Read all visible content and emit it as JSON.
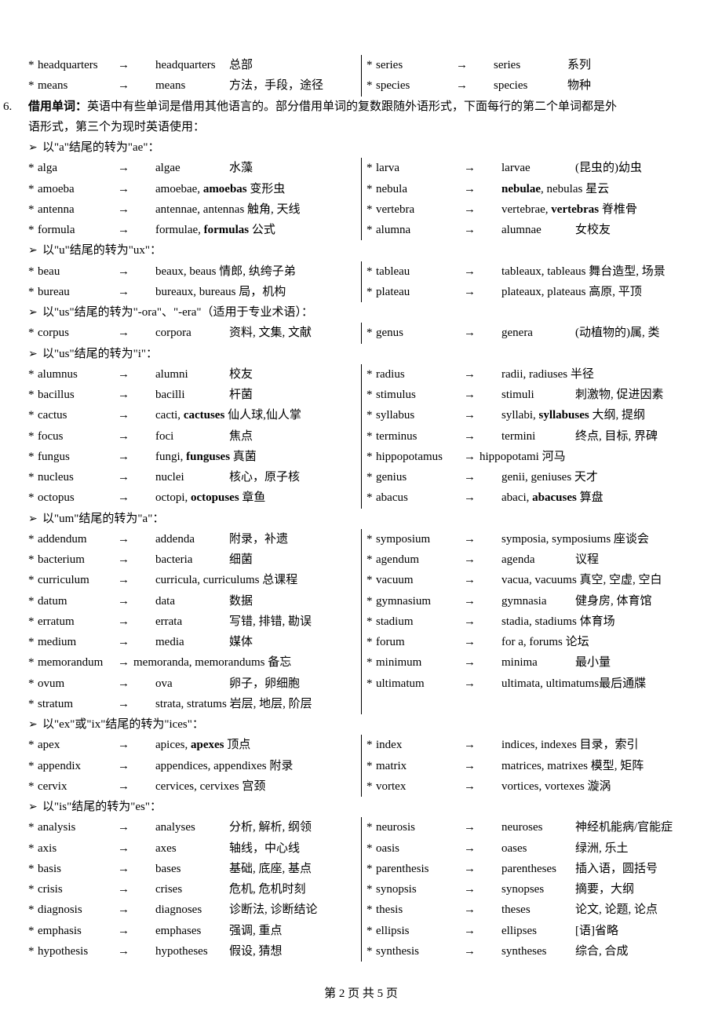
{
  "glyph": {
    "star": "*",
    "arrow": "→",
    "chev": "➢"
  },
  "top": {
    "L1": {
      "w": "headquarters",
      "p": "headquarters",
      "m": "总部"
    },
    "L2": {
      "w": "means",
      "p": "means",
      "m": "方法，手段，途径"
    },
    "R1": {
      "w": "series",
      "p": "series",
      "m": "系列"
    },
    "R2": {
      "w": "species",
      "p": "species",
      "m": "物种"
    }
  },
  "sec6": {
    "num": "6.",
    "title": "借用单词：",
    "body": "英语中有些单词是借用其他语言的。部分借用单词的复数跟随外语形式，下面每行的第二个单词都是外",
    "cont": "语形式，第三个为现时英语使用："
  },
  "h_a": "以\"a\"结尾的转为\"ae\"：",
  "a": {
    "L": [
      {
        "w": "alga",
        "p": "algae",
        "m": "水藻"
      },
      {
        "w": "amoeba",
        "p": "amoebae, <b>amoebas</b>  变形虫"
      },
      {
        "w": "antenna",
        "p": "antennae, antennas  触角, 天线"
      },
      {
        "w": "formula",
        "p": "formulae, <b>formulas</b>  公式"
      }
    ],
    "R": [
      {
        "w": "larva",
        "p": "larvae",
        "m": "(昆虫的)幼虫"
      },
      {
        "w": "nebula",
        "p": "<b>nebulae</b>, nebulas  星云"
      },
      {
        "w": "vertebra",
        "p": "vertebrae, <b>vertebras</b>  脊椎骨"
      },
      {
        "w": "alumna",
        "p": "alumnae",
        "m": "女校友"
      }
    ]
  },
  "h_u": "以\"u\"结尾的转为\"ux\"：",
  "u": {
    "L": [
      {
        "w": "beau",
        "p": "beaux, beaus  情郎, 纨绔子弟"
      },
      {
        "w": "bureau",
        "p": "bureaux, bureaus  局，机构"
      }
    ],
    "R": [
      {
        "w": "tableau",
        "p": "tableaux, tableaus  舞台造型, 场景"
      },
      {
        "w": "plateau",
        "p": "plateaux, plateaus  高原, 平顶"
      }
    ]
  },
  "h_us1": "以\"us\"结尾的转为\"-ora\"、\"-era\"（适用于专业术语）：",
  "us1": {
    "L": [
      {
        "w": "corpus",
        "p": "corpora",
        "m": "资料, 文集, 文献"
      }
    ],
    "R": [
      {
        "w": "genus",
        "p": "genera",
        "m": "(动植物的)属, 类"
      }
    ]
  },
  "h_us2": "以\"us\"结尾的转为\"i\"：",
  "us2": {
    "L": [
      {
        "w": "alumnus",
        "p": "alumni",
        "m": "校友"
      },
      {
        "w": "bacillus",
        "p": "bacilli",
        "m": "杆菌"
      },
      {
        "w": "cactus",
        "p": "cacti, <b>cactuses</b>  仙人球,仙人掌"
      },
      {
        "w": "focus",
        "p": "foci",
        "m": "焦点"
      },
      {
        "w": "fungus",
        "p": "fungi, <b>funguses</b>  真菌"
      },
      {
        "w": "nucleus",
        "p": "nuclei",
        "m": "核心，原子核"
      },
      {
        "w": "octopus",
        "p": "octopi, <b>octopuses</b>  章鱼"
      }
    ],
    "R": [
      {
        "w": "radius",
        "p": "radii, radiuses       半径"
      },
      {
        "w": "stimulus",
        "p": "stimuli",
        "m": "刺激物, 促进因素"
      },
      {
        "w": "syllabus",
        "p": "syllabi, <b>syllabuses</b>  大纲, 提纲"
      },
      {
        "w": "terminus",
        "p": "termini",
        "m": "终点, 目标, 界碑"
      },
      {
        "w": "hippopotamus",
        "arrTight": true,
        "p": "hippopotami  河马"
      },
      {
        "w": "genius",
        "p": "genii, geniuses  天才"
      },
      {
        "w": "abacus",
        "p": "abaci, <b>abacuses</b>  算盘"
      }
    ]
  },
  "h_um": "以\"um\"结尾的转为\"a\"：",
  "um": {
    "L": [
      {
        "w": "addendum",
        "p": "addenda",
        "m": "附录，补遗"
      },
      {
        "w": "bacterium",
        "p": "bacteria",
        "m": "细菌"
      },
      {
        "w": "curriculum",
        "p": "curricula, curriculums  总课程"
      },
      {
        "w": "datum",
        "p": "data",
        "m": "数据"
      },
      {
        "w": "erratum",
        "p": "errata",
        "m": "写错, 排错, 勘误"
      },
      {
        "w": "medium",
        "p": "media",
        "m": "媒体"
      },
      {
        "w": "memorandum",
        "arrTight": true,
        "p": "memoranda, memorandums  备忘"
      },
      {
        "w": "ovum",
        "p": "ova",
        "m": "卵子，卵细胞"
      },
      {
        "w": "stratum",
        "p": "strata, stratums  岩层, 地层, 阶层"
      }
    ],
    "R": [
      {
        "w": "symposium",
        "p": "symposia, symposiums 座谈会"
      },
      {
        "w": "agendum",
        "p": "agenda",
        "m": "议程"
      },
      {
        "w": "vacuum",
        "p": "vacua, vacuums  真空, 空虚, 空白"
      },
      {
        "w": "gymnasium",
        "p": "gymnasia",
        "m": "健身房, 体育馆"
      },
      {
        "w": "stadium",
        "p": "stadia, stadiums  体育场"
      },
      {
        "w": "forum",
        "p": "for a, forums  论坛"
      },
      {
        "w": "minimum",
        "p": "minima",
        "m": "最小量"
      },
      {
        "w": "ultimatum",
        "p": "ultimata, ultimatums最后通牒"
      }
    ]
  },
  "h_ex": "以\"ex\"或\"ix\"结尾的转为\"ices\"：",
  "ex": {
    "L": [
      {
        "w": "apex",
        "p": "apices, <b>apexes</b>  顶点"
      },
      {
        "w": "appendix",
        "p": "appendices, appendixes  附录"
      },
      {
        "w": "cervix",
        "p": "cervices, cervixes  宫颈"
      }
    ],
    "R": [
      {
        "w": "index",
        "p": "indices, indexes  目录，索引"
      },
      {
        "w": "matrix",
        "p": "matrices, matrixes  模型, 矩阵"
      },
      {
        "w": "vortex",
        "p": "vortices, vortexes  漩涡"
      }
    ]
  },
  "h_is": "以\"is\"结尾的转为\"es\"：",
  "is": {
    "L": [
      {
        "w": "analysis",
        "p": "analyses",
        "m": "分析, 解析, 纲领"
      },
      {
        "w": "axis",
        "p": "axes",
        "m": "轴线，中心线"
      },
      {
        "w": "basis",
        "p": "bases",
        "m": "基础, 底座, 基点"
      },
      {
        "w": "crisis",
        "p": "crises",
        "m": "危机, 危机时刻"
      },
      {
        "w": "diagnosis",
        "p": "diagnoses",
        "m": "诊断法, 诊断结论"
      },
      {
        "w": "emphasis",
        "p": "emphases",
        "m": "强调, 重点"
      },
      {
        "w": "hypothesis",
        "p": "hypotheses",
        "m": "假设, 猜想"
      }
    ],
    "R": [
      {
        "w": "neurosis",
        "p": "neuroses",
        "m": "神经机能病/官能症"
      },
      {
        "w": "oasis",
        "p": "oases",
        "m": "绿洲, 乐土"
      },
      {
        "w": "parenthesis",
        "p": "parentheses",
        "m": "插入语，圆括号"
      },
      {
        "w": "synopsis",
        "p": "synopses",
        "m": "摘要，大纲"
      },
      {
        "w": "thesis",
        "p": "theses",
        "m": "论文, 论题, 论点"
      },
      {
        "w": "ellipsis",
        "p": "ellipses",
        "m": "[语]省略"
      },
      {
        "w": "synthesis",
        "p": "syntheses",
        "m": "综合, 合成"
      }
    ]
  },
  "footer": "第 2 页 共 5 页"
}
